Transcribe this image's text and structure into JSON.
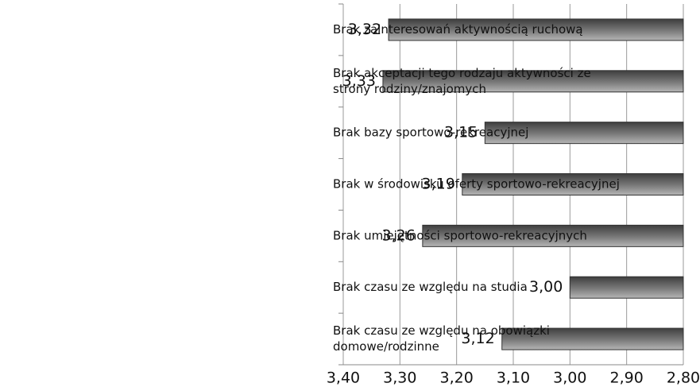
{
  "chart_data": {
    "type": "bar",
    "orientation": "horizontal",
    "title": "",
    "xlabel": "",
    "ylabel": "",
    "categories": [
      [
        "Brak zainteresowań aktywnością ruchową"
      ],
      [
        "Brak akceptacji tego rodzaju aktywności ze",
        "strony rodziny/znajomych"
      ],
      [
        "Brak bazy sportowo-rekreacyjnej"
      ],
      [
        "Brak w środowisku oferty sportowo-rekreacyjnej"
      ],
      [
        "Brak umiejętności sportowo-rekreacyjnych"
      ],
      [
        "Brak czasu ze względu na studia"
      ],
      [
        "Brak czasu ze względu na obowiązki",
        "domowe/rodzinne"
      ]
    ],
    "values": [
      3.32,
      3.33,
      3.15,
      3.19,
      3.26,
      3.0,
      3.12
    ],
    "value_labels": [
      "3,32",
      "3,33",
      "3,15",
      "3,19",
      "3,26",
      "3,00",
      "3,12"
    ],
    "xlim": [
      2.8,
      3.4
    ],
    "x_ticks": [
      2.8,
      2.9,
      3.0,
      3.1,
      3.2,
      3.3,
      3.4
    ],
    "x_tick_labels": [
      "2,80",
      "2,90",
      "3,00",
      "3,10",
      "3,20",
      "3,30",
      "3,40"
    ],
    "grid": "vertical",
    "legend": "none",
    "image_flipped": "rotated 180 degrees",
    "bar_color": "#7a7a7a",
    "grid_color": "#9a9a9a"
  }
}
